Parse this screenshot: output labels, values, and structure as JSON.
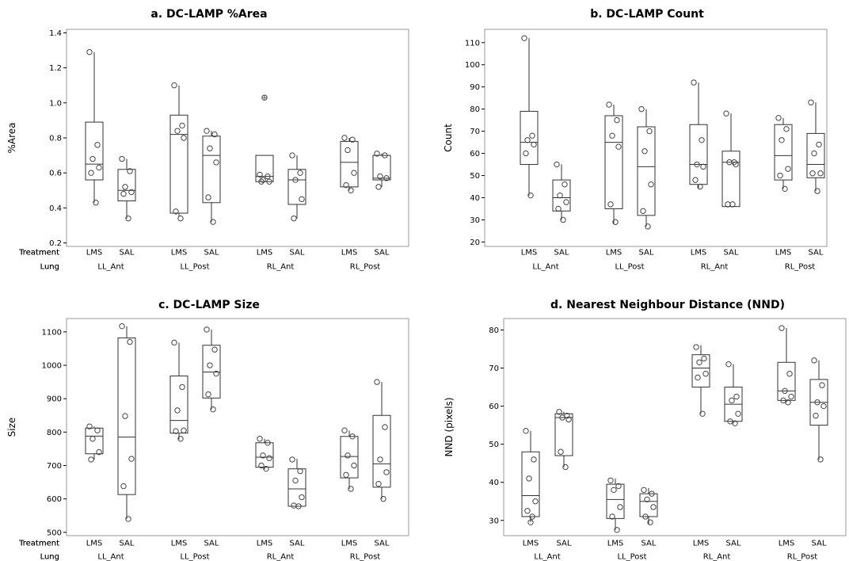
{
  "row_labels": {
    "treatment": "Treatment",
    "lung": "Lung"
  },
  "chart_data": [
    {
      "type": "boxplot",
      "title": "a. DC-LAMP %Area",
      "xlabel": "",
      "ylabel": "%Area",
      "ylim": [
        0.18,
        1.42
      ],
      "yticks": [
        0.2,
        0.4,
        0.6,
        0.8,
        1.0,
        1.2,
        1.4
      ],
      "ytick_labels": [
        "0.2",
        "0.4",
        "0.6",
        "0.8",
        "1.0",
        "1.2",
        "1.4"
      ],
      "grid": false,
      "groups": [
        {
          "lung": "LL_Ant",
          "boxes": [
            {
              "treatment": "LMS",
              "whisker_low": 0.43,
              "q1": 0.56,
              "median": 0.65,
              "q3": 0.89,
              "whisker_high": 1.29,
              "points": [
                1.29,
                0.76,
                0.68,
                0.63,
                0.6,
                0.43
              ],
              "outliers": []
            },
            {
              "treatment": "SAL",
              "whisker_low": 0.34,
              "q1": 0.44,
              "median": 0.5,
              "q3": 0.62,
              "whisker_high": 0.68,
              "points": [
                0.68,
                0.61,
                0.52,
                0.49,
                0.48,
                0.34
              ],
              "outliers": []
            }
          ]
        },
        {
          "lung": "LL_Post",
          "boxes": [
            {
              "treatment": "LMS",
              "whisker_low": 0.35,
              "q1": 0.37,
              "median": 0.82,
              "q3": 0.93,
              "whisker_high": 1.1,
              "points": [
                1.1,
                0.87,
                0.84,
                0.8,
                0.38,
                0.34
              ],
              "outliers": []
            },
            {
              "treatment": "SAL",
              "whisker_low": 0.32,
              "q1": 0.43,
              "median": 0.7,
              "q3": 0.81,
              "whisker_high": 0.84,
              "points": [
                0.84,
                0.82,
                0.74,
                0.66,
                0.46,
                0.32
              ],
              "outliers": []
            }
          ]
        },
        {
          "lung": "RL_Ant",
          "boxes": [
            {
              "treatment": "LMS",
              "whisker_low": 0.55,
              "q1": 0.55,
              "median": 0.58,
              "q3": 0.7,
              "whisker_high": 0.7,
              "points": [
                0.59,
                0.58,
                0.56,
                0.55,
                0.55
              ],
              "outliers": [
                1.03
              ]
            },
            {
              "treatment": "SAL",
              "whisker_low": 0.34,
              "q1": 0.42,
              "median": 0.56,
              "q3": 0.62,
              "whisker_high": 0.7,
              "points": [
                0.7,
                0.6,
                0.56,
                0.45,
                0.34
              ],
              "outliers": []
            }
          ]
        },
        {
          "lung": "RL_Post",
          "boxes": [
            {
              "treatment": "LMS",
              "whisker_low": 0.5,
              "q1": 0.52,
              "median": 0.66,
              "q3": 0.78,
              "whisker_high": 0.8,
              "points": [
                0.8,
                0.79,
                0.73,
                0.6,
                0.53,
                0.5
              ],
              "outliers": []
            },
            {
              "treatment": "SAL",
              "whisker_low": 0.52,
              "q1": 0.56,
              "median": 0.57,
              "q3": 0.7,
              "whisker_high": 0.71,
              "points": [
                0.71,
                0.7,
                0.58,
                0.57,
                0.52
              ],
              "outliers": []
            }
          ]
        }
      ]
    },
    {
      "type": "boxplot",
      "title": "b. DC-LAMP Count",
      "xlabel": "",
      "ylabel": "Count",
      "ylim": [
        18,
        116
      ],
      "yticks": [
        20,
        30,
        40,
        50,
        60,
        70,
        80,
        90,
        100,
        110
      ],
      "ytick_labels": [
        "20",
        "30",
        "40",
        "50",
        "60",
        "70",
        "80",
        "90",
        "100",
        "110"
      ],
      "grid": false,
      "groups": [
        {
          "lung": "LL_Ant",
          "boxes": [
            {
              "treatment": "LMS",
              "whisker_low": 41,
              "q1": 55,
              "median": 65,
              "q3": 79,
              "whisker_high": 112,
              "points": [
                112,
                68,
                66,
                64,
                60,
                41
              ],
              "outliers": []
            },
            {
              "treatment": "SAL",
              "whisker_low": 30,
              "q1": 34,
              "median": 40,
              "q3": 48,
              "whisker_high": 55,
              "points": [
                55,
                46,
                41,
                38,
                35,
                30
              ],
              "outliers": []
            }
          ]
        },
        {
          "lung": "LL_Post",
          "boxes": [
            {
              "treatment": "LMS",
              "whisker_low": 28,
              "q1": 35,
              "median": 65,
              "q3": 77,
              "whisker_high": 82,
              "points": [
                82,
                75,
                68,
                63,
                37,
                29
              ],
              "outliers": []
            },
            {
              "treatment": "SAL",
              "whisker_low": 27,
              "q1": 32,
              "median": 54,
              "q3": 72,
              "whisker_high": 80,
              "points": [
                80,
                70,
                61,
                46,
                34,
                27
              ],
              "outliers": []
            }
          ]
        },
        {
          "lung": "RL_Ant",
          "boxes": [
            {
              "treatment": "LMS",
              "whisker_low": 44,
              "q1": 46,
              "median": 55,
              "q3": 73,
              "whisker_high": 92,
              "points": [
                92,
                66,
                55,
                54,
                48,
                45
              ],
              "outliers": []
            },
            {
              "treatment": "SAL",
              "whisker_low": 36,
              "q1": 36,
              "median": 56,
              "q3": 61,
              "whisker_high": 78,
              "points": [
                78,
                56,
                56,
                55,
                37,
                37
              ],
              "outliers": []
            }
          ]
        },
        {
          "lung": "RL_Post",
          "boxes": [
            {
              "treatment": "LMS",
              "whisker_low": 44,
              "q1": 48,
              "median": 59,
              "q3": 73,
              "whisker_high": 76,
              "points": [
                76,
                71,
                66,
                53,
                50,
                44
              ],
              "outliers": []
            },
            {
              "treatment": "SAL",
              "whisker_low": 43,
              "q1": 49,
              "median": 55,
              "q3": 69,
              "whisker_high": 83,
              "points": [
                83,
                64,
                60,
                51,
                51,
                43
              ],
              "outliers": []
            }
          ]
        }
      ]
    },
    {
      "type": "boxplot",
      "title": "c. DC-LAMP Size",
      "xlabel": "",
      "ylabel": "Size",
      "ylim": [
        490,
        1140
      ],
      "yticks": [
        500,
        600,
        700,
        800,
        900,
        1000,
        1100
      ],
      "ytick_labels": [
        "500",
        "600",
        "700",
        "800",
        "900",
        "1000",
        "1100"
      ],
      "grid": false,
      "groups": [
        {
          "lung": "LL_Ant",
          "boxes": [
            {
              "treatment": "LMS",
              "whisker_low": 718,
              "q1": 735,
              "median": 788,
              "q3": 812,
              "whisker_high": 817,
              "points": [
                817,
                805,
                780,
                740,
                718
              ],
              "outliers": []
            },
            {
              "treatment": "SAL",
              "whisker_low": 540,
              "q1": 613,
              "median": 785,
              "q3": 1082,
              "whisker_high": 1117,
              "points": [
                1117,
                1070,
                848,
                720,
                638,
                540
              ],
              "outliers": []
            }
          ]
        },
        {
          "lung": "LL_Post",
          "boxes": [
            {
              "treatment": "LMS",
              "whisker_low": 778,
              "q1": 797,
              "median": 835,
              "q3": 968,
              "whisker_high": 1068,
              "points": [
                1068,
                935,
                865,
                805,
                803,
                780
              ],
              "outliers": []
            },
            {
              "treatment": "SAL",
              "whisker_low": 868,
              "q1": 902,
              "median": 980,
              "q3": 1060,
              "whisker_high": 1107,
              "points": [
                1107,
                1047,
                1000,
                975,
                913,
                868
              ],
              "outliers": []
            }
          ]
        },
        {
          "lung": "RL_Ant",
          "boxes": [
            {
              "treatment": "LMS",
              "whisker_low": 688,
              "q1": 695,
              "median": 725,
              "q3": 768,
              "whisker_high": 780,
              "points": [
                780,
                768,
                730,
                722,
                700,
                690
              ],
              "outliers": []
            },
            {
              "treatment": "SAL",
              "whisker_low": 578,
              "q1": 578,
              "median": 630,
              "q3": 690,
              "whisker_high": 720,
              "points": [
                718,
                683,
                655,
                605,
                580,
                578
              ],
              "outliers": []
            }
          ]
        },
        {
          "lung": "RL_Post",
          "boxes": [
            {
              "treatment": "LMS",
              "whisker_low": 630,
              "q1": 663,
              "median": 727,
              "q3": 787,
              "whisker_high": 805,
              "points": [
                805,
                787,
                730,
                700,
                672,
                630
              ],
              "outliers": []
            },
            {
              "treatment": "SAL",
              "whisker_low": 600,
              "q1": 635,
              "median": 705,
              "q3": 850,
              "whisker_high": 950,
              "points": [
                950,
                815,
                718,
                680,
                645,
                600
              ],
              "outliers": []
            }
          ]
        }
      ]
    },
    {
      "type": "boxplot",
      "title": "d. Nearest Neighbour Distance (NND)",
      "xlabel": "",
      "ylabel": "NND (pixels)",
      "ylim": [
        26,
        83
      ],
      "yticks": [
        30,
        40,
        50,
        60,
        70,
        80
      ],
      "ytick_labels": [
        "30",
        "40",
        "50",
        "60",
        "70",
        "80"
      ],
      "grid": false,
      "groups": [
        {
          "lung": "LL_Ant",
          "boxes": [
            {
              "treatment": "LMS",
              "whisker_low": 29.5,
              "q1": 31,
              "median": 36.5,
              "q3": 48,
              "whisker_high": 53.5,
              "points": [
                53.5,
                46,
                41,
                35,
                32.5,
                31,
                29.5
              ],
              "outliers": []
            },
            {
              "treatment": "SAL",
              "whisker_low": 44,
              "q1": 47,
              "median": 57,
              "q3": 58,
              "whisker_high": 58.5,
              "points": [
                58.5,
                57.5,
                57,
                56.5,
                48,
                44
              ],
              "outliers": []
            }
          ]
        },
        {
          "lung": "LL_Post",
          "boxes": [
            {
              "treatment": "LMS",
              "whisker_low": 27.5,
              "q1": 30.5,
              "median": 35.5,
              "q3": 39.5,
              "whisker_high": 41,
              "points": [
                40.5,
                39,
                38,
                33.5,
                31,
                27.5
              ],
              "outliers": []
            },
            {
              "treatment": "SAL",
              "whisker_low": 29,
              "q1": 31,
              "median": 35,
              "q3": 37,
              "whisker_high": 38.5,
              "points": [
                38,
                37,
                35.5,
                33.5,
                31,
                29.5
              ],
              "outliers": []
            }
          ]
        },
        {
          "lung": "RL_Ant",
          "boxes": [
            {
              "treatment": "LMS",
              "whisker_low": 58,
              "q1": 65,
              "median": 70,
              "q3": 73.5,
              "whisker_high": 76,
              "points": [
                75.5,
                72.5,
                71.5,
                68.5,
                67.5,
                58
              ],
              "outliers": []
            },
            {
              "treatment": "SAL",
              "whisker_low": 55.5,
              "q1": 56,
              "median": 60.5,
              "q3": 65,
              "whisker_high": 71,
              "points": [
                71,
                62.5,
                61.5,
                58,
                56,
                55.5
              ],
              "outliers": []
            }
          ]
        },
        {
          "lung": "RL_Post",
          "boxes": [
            {
              "treatment": "LMS",
              "whisker_low": 61,
              "q1": 61.5,
              "median": 64,
              "q3": 71.5,
              "whisker_high": 80.5,
              "points": [
                80.5,
                68.5,
                64,
                62.5,
                61.5,
                61
              ],
              "outliers": []
            },
            {
              "treatment": "SAL",
              "whisker_low": 46,
              "q1": 55,
              "median": 61,
              "q3": 67,
              "whisker_high": 72,
              "points": [
                72,
                65.5,
                61,
                60,
                57.5,
                46
              ],
              "outliers": []
            }
          ]
        }
      ]
    }
  ]
}
